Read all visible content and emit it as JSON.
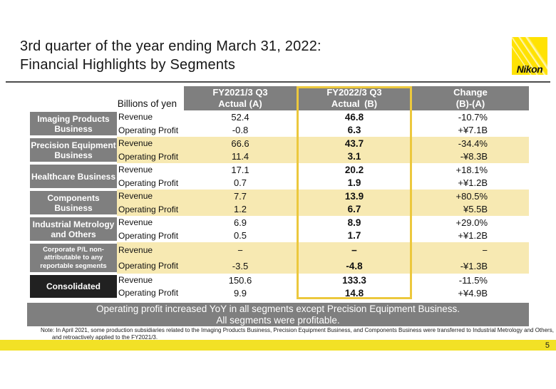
{
  "page": {
    "title": "3rd quarter of the year ending March 31, 2022:\nFinancial Highlights by Segments",
    "logo_text": "Nikon",
    "page_number": "5"
  },
  "table": {
    "unit_label": "Billions of yen",
    "col_headers": {
      "a": "FY2021/3 Q3\nActual (A)",
      "b": "FY2022/3 Q3\nActual (B)",
      "change": "Change\n(B)-(A)"
    },
    "row_labels": {
      "revenue": "Revenue",
      "operating_profit": "Operating Profit"
    },
    "segments": [
      {
        "name": "Imaging Products\nBusiness",
        "revenue": {
          "a": "52.4",
          "b": "46.8",
          "change": "-10.7%"
        },
        "operating_profit": {
          "a": "-0.8",
          "b": "6.3",
          "change": "+¥7.1B"
        }
      },
      {
        "name": "Precision Equipment\nBusiness",
        "revenue": {
          "a": "66.6",
          "b": "43.7",
          "change": "-34.4%"
        },
        "operating_profit": {
          "a": "11.4",
          "b": "3.1",
          "change": "-¥8.3B"
        }
      },
      {
        "name": "Healthcare Business",
        "revenue": {
          "a": "17.1",
          "b": "20.2",
          "change": "+18.1%"
        },
        "operating_profit": {
          "a": "0.7",
          "b": "1.9",
          "change": "+¥1.2B"
        }
      },
      {
        "name": "Components\nBusiness",
        "revenue": {
          "a": "7.7",
          "b": "13.9",
          "change": "+80.5%"
        },
        "operating_profit": {
          "a": "1.2",
          "b": "6.7",
          "change": "¥5.5B"
        }
      },
      {
        "name": "Industrial Metrology\nand Others",
        "revenue": {
          "a": "6.9",
          "b": "8.9",
          "change": "+29.0%"
        },
        "operating_profit": {
          "a": "0.5",
          "b": "1.7",
          "change": "+¥1.2B"
        }
      },
      {
        "name": "Corporate P/L non-\nattributable to any\nreportable segments",
        "revenue": {
          "a": "−",
          "b": "−",
          "change": "−"
        },
        "operating_profit": {
          "a": "-3.5",
          "b": "-4.8",
          "change": "-¥1.3B"
        }
      },
      {
        "name": "Consolidated",
        "revenue": {
          "a": "150.6",
          "b": "133.3",
          "change": "-11.5%"
        },
        "operating_profit": {
          "a": "9.9",
          "b": "14.8",
          "change": "+¥4.9B"
        }
      }
    ]
  },
  "banner": {
    "text": "Operating profit increased YoY in all segments except Precision Equipment Business.\nAll segments were profitable."
  },
  "note": {
    "line1": "Note:  In April 2021, some production subsidiaries related to the Imaging Products Business, Precision Equipment Business, and Components Business were transferred to Industrial Metrology and Others,",
    "line2": "and retroactively applied to the FY2021/3."
  },
  "colors": {
    "header_gray": "#7f7f7f",
    "consolidated_black": "#212121",
    "row_highlight_cream": "#f7e9b2",
    "column_b_border_gold": "#ecc83d",
    "footer_bar_yellow": "#f2e126",
    "logo_yellow": "#ffe203"
  }
}
